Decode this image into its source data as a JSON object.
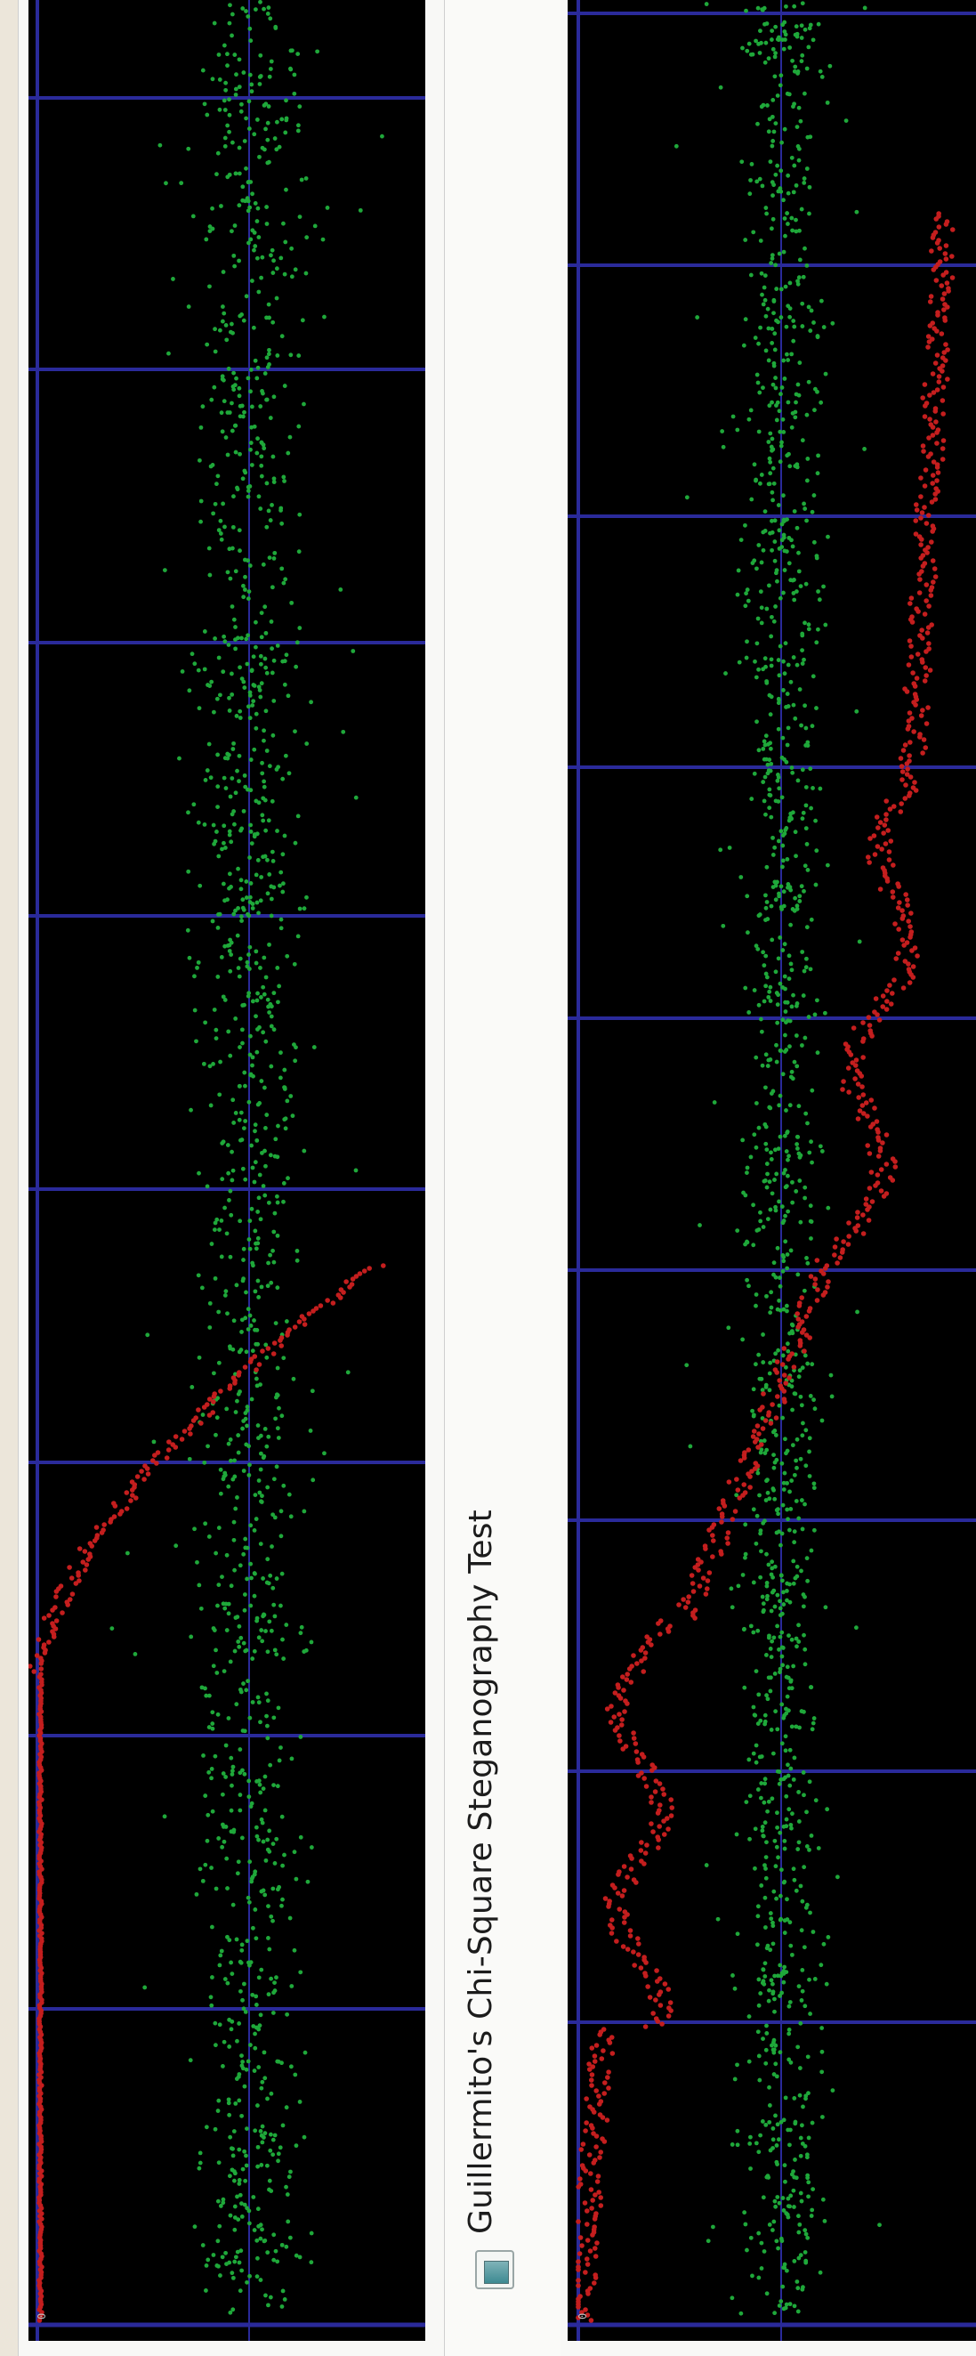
{
  "window": {
    "title": "Guillermito's Chi-Square Steganography Test",
    "icon": "app-window-icon"
  },
  "colors": {
    "plot_background": "#000000",
    "grid": "#2a2a9a",
    "chi_square_series": "#c41e1e",
    "lsb_average_series": "#1fa83a"
  },
  "left_plot": {
    "axis_zero_label": "0",
    "chart_data": {
      "type": "scatter",
      "orientation": "rotated-90",
      "series": [
        {
          "name": "",
          "color": "#c41e1e",
          "trend": "near-zero then rising"
        },
        {
          "name": "",
          "color": "#1fa83a",
          "trend": "noisy band around midline"
        }
      ]
    }
  },
  "right_plot": {
    "axis_zero_label": "0",
    "chart_data": {
      "type": "scatter",
      "orientation": "rotated-90",
      "series": [
        {
          "name": "",
          "color": "#c41e1e",
          "trend": "low, rising to high"
        },
        {
          "name": "",
          "color": "#1fa83a",
          "trend": "noisy band around midline"
        }
      ]
    }
  }
}
